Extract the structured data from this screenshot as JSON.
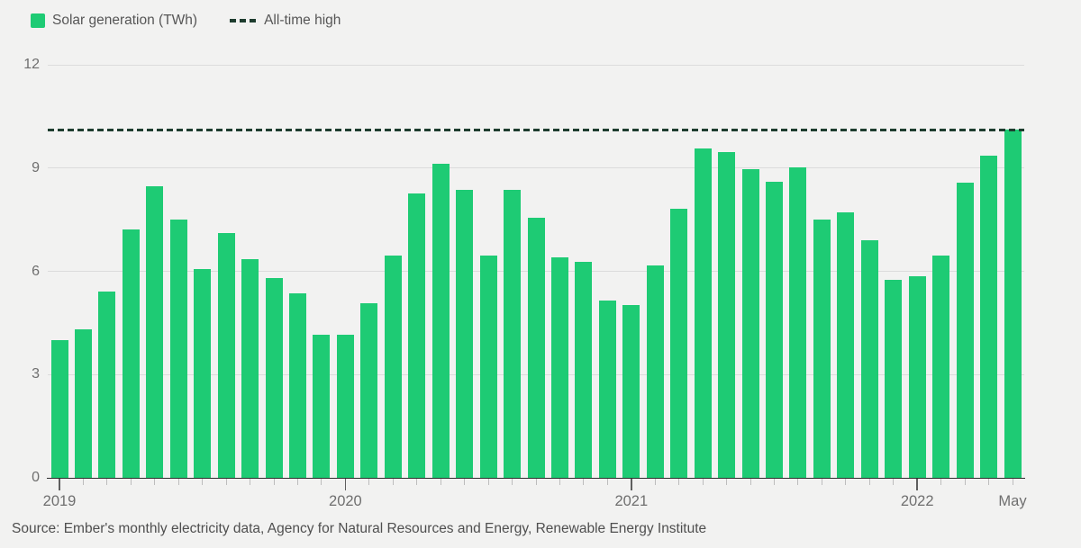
{
  "legend": {
    "series_label": "Solar generation (TWh)",
    "line_label": "All-time high"
  },
  "colors": {
    "background": "#f2f2f1",
    "bar": "#1ecb74",
    "all_time_high_line": "#1e3d2f"
  },
  "chart_data": {
    "type": "bar",
    "title": "",
    "ylabel": "Solar generation (TWh)",
    "xlabel": "",
    "ylim": [
      0,
      12
    ],
    "yticks": [
      0,
      3,
      6,
      9,
      12
    ],
    "grid": true,
    "legend_position": "top-left",
    "all_time_high": 10.1,
    "categories": [
      "Jan 2019",
      "Feb 2019",
      "Mar 2019",
      "Apr 2019",
      "May 2019",
      "Jun 2019",
      "Jul 2019",
      "Aug 2019",
      "Sep 2019",
      "Oct 2019",
      "Nov 2019",
      "Dec 2019",
      "Jan 2020",
      "Feb 2020",
      "Mar 2020",
      "Apr 2020",
      "May 2020",
      "Jun 2020",
      "Jul 2020",
      "Aug 2020",
      "Sep 2020",
      "Oct 2020",
      "Nov 2020",
      "Dec 2020",
      "Jan 2021",
      "Feb 2021",
      "Mar 2021",
      "Apr 2021",
      "May 2021",
      "Jun 2021",
      "Jul 2021",
      "Aug 2021",
      "Sep 2021",
      "Oct 2021",
      "Nov 2021",
      "Dec 2021",
      "Jan 2022",
      "Feb 2022",
      "Mar 2022",
      "Apr 2022",
      "May 2022"
    ],
    "values": [
      4.0,
      4.3,
      5.4,
      7.2,
      8.45,
      7.5,
      6.05,
      7.1,
      6.35,
      5.8,
      5.35,
      4.15,
      4.15,
      5.05,
      6.45,
      8.25,
      9.1,
      8.35,
      6.45,
      8.35,
      7.55,
      6.4,
      6.25,
      5.15,
      5.0,
      6.15,
      7.8,
      9.55,
      9.45,
      8.95,
      8.6,
      9.0,
      7.5,
      7.7,
      6.9,
      5.75,
      5.85,
      6.45,
      8.55,
      9.35,
      10.1
    ],
    "x_year_ticks": [
      {
        "label": "2019",
        "index": 0
      },
      {
        "label": "2020",
        "index": 12
      },
      {
        "label": "2021",
        "index": 24
      },
      {
        "label": "2022",
        "index": 36
      },
      {
        "label": "May",
        "index": 40
      }
    ]
  },
  "source": "Source: Ember's monthly electricity data, Agency for Natural Resources and Energy, Renewable Energy Institute"
}
